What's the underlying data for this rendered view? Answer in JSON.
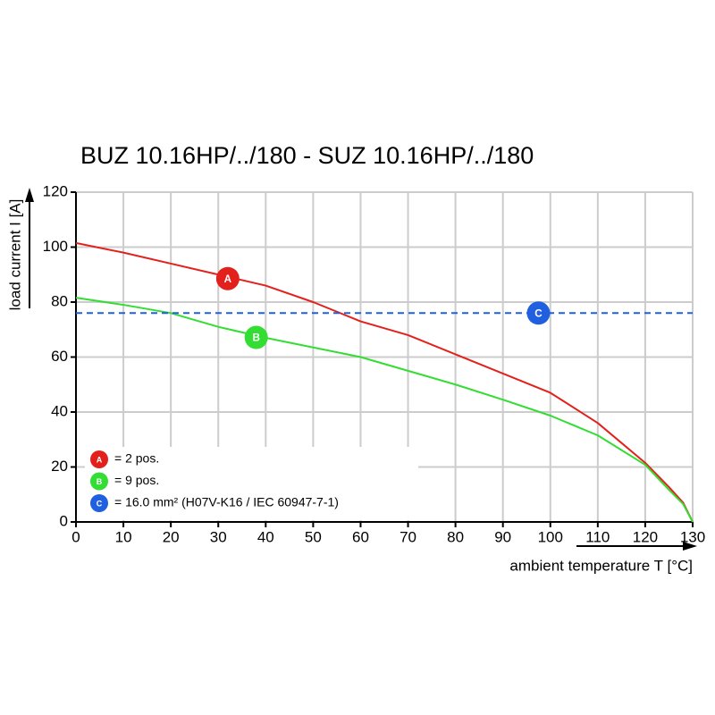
{
  "chart_data": {
    "type": "line",
    "title": "BUZ 10.16HP/../180 - SUZ 10.16HP/../180",
    "x_label": "ambient temperature T [°C]",
    "y_label": "load current I [A]",
    "x": [
      0,
      10,
      20,
      30,
      40,
      50,
      60,
      70,
      80,
      90,
      100,
      110,
      120,
      125,
      128,
      130
    ],
    "series": [
      {
        "name": "= 2 pos.",
        "marker": "A",
        "color": "#e3211c",
        "values": [
          101.5,
          98,
          94,
          90,
          86,
          80,
          73,
          68,
          61,
          54,
          47,
          36,
          21.5,
          12.7,
          7,
          0
        ]
      },
      {
        "name": "= 9 pos.",
        "marker": "B",
        "color": "#33dd33",
        "values": [
          81.6,
          79,
          76,
          71,
          67,
          63.5,
          60,
          55,
          50,
          44.5,
          38.7,
          31.5,
          20.8,
          11.7,
          6.5,
          0
        ]
      },
      {
        "name": "= 16.0 mm² (H07V-K16 / IEC 60947-7-1)",
        "marker": "C",
        "color": "#2060e0",
        "dashed": true,
        "values": [
          76,
          76,
          76,
          76,
          76,
          76,
          76,
          76,
          76,
          76,
          76,
          76,
          76,
          76,
          76,
          76
        ]
      }
    ],
    "xlim": [
      0,
      130
    ],
    "ylim": [
      0,
      120
    ],
    "xticks": [
      0,
      10,
      20,
      30,
      40,
      50,
      60,
      70,
      80,
      90,
      100,
      110,
      120,
      130
    ],
    "yticks": [
      0,
      20,
      40,
      60,
      80,
      100,
      120
    ],
    "grid": true
  }
}
